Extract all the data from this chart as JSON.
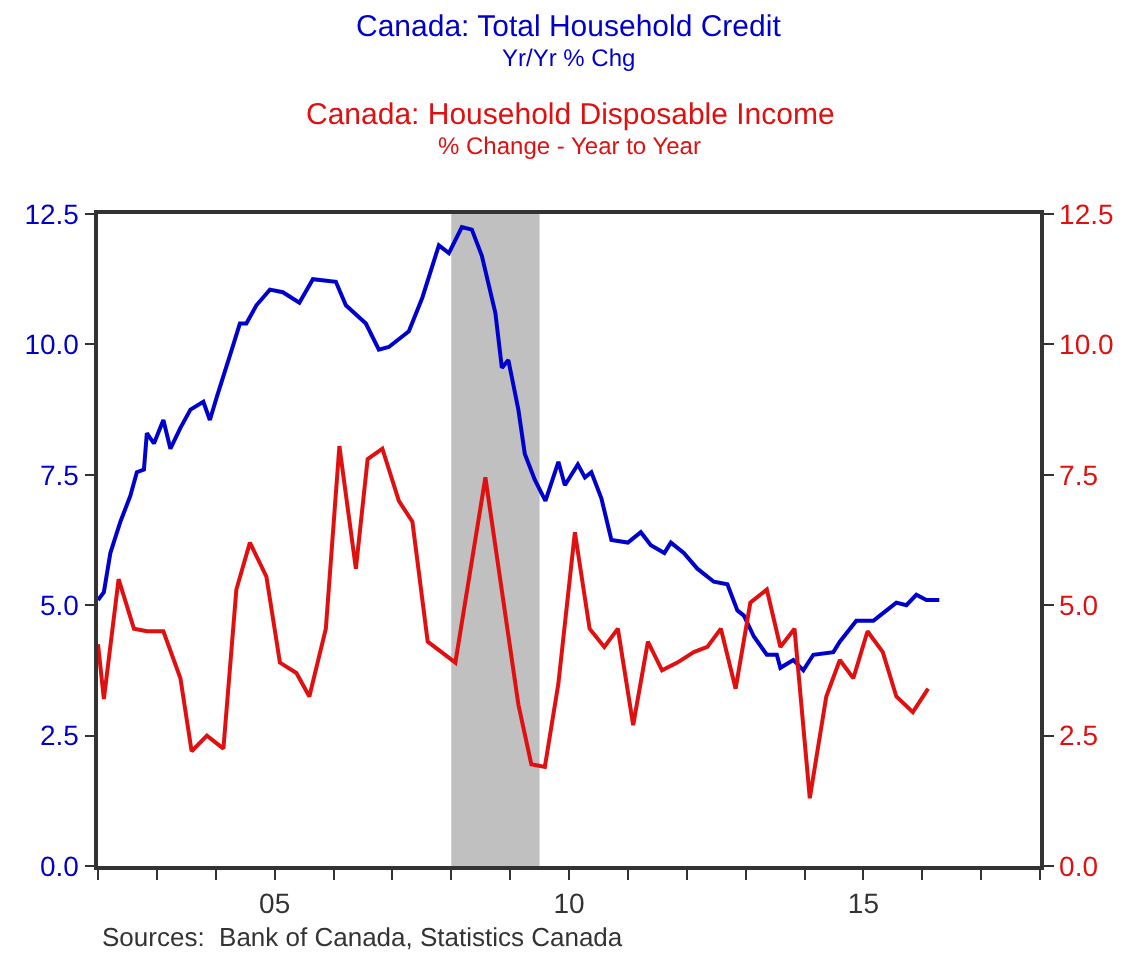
{
  "chart_data": {
    "type": "line",
    "annotations": [
      "Yr/Yr % Chg",
      "% Change - Year to Year",
      "Sources:  Bank of Canada, Statistics Canada"
    ],
    "xlim": [
      2,
      18
    ],
    "xticks": [
      {
        "value": 2,
        "label": null
      },
      {
        "value": 3,
        "label": null
      },
      {
        "value": 4,
        "label": null
      },
      {
        "value": 5,
        "label": "05"
      },
      {
        "value": 6,
        "label": null
      },
      {
        "value": 7,
        "label": null
      },
      {
        "value": 8,
        "label": null
      },
      {
        "value": 9,
        "label": null
      },
      {
        "value": 10,
        "label": "10"
      },
      {
        "value": 11,
        "label": null
      },
      {
        "value": 12,
        "label": null
      },
      {
        "value": 13,
        "label": null
      },
      {
        "value": 14,
        "label": null
      },
      {
        "value": 15,
        "label": "15"
      },
      {
        "value": 16,
        "label": null
      },
      {
        "value": 17,
        "label": null
      },
      {
        "value": 18,
        "label": null
      }
    ],
    "ylim": [
      0,
      12.5
    ],
    "yticks": [
      {
        "value": 0,
        "label": "0.0"
      },
      {
        "value": 2.5,
        "label": "2.5"
      },
      {
        "value": 5,
        "label": "5.0"
      },
      {
        "value": 7.5,
        "label": "7.5"
      },
      {
        "value": 10,
        "label": "10.0"
      },
      {
        "value": 12.5,
        "label": "12.5"
      }
    ],
    "y2lim": [
      0,
      12.5
    ],
    "y2ticks": [
      {
        "value": 0,
        "label": "0.0"
      },
      {
        "value": 2.5,
        "label": "2.5"
      },
      {
        "value": 5,
        "label": "5.0"
      },
      {
        "value": 7.5,
        "label": "7.5"
      },
      {
        "value": 10,
        "label": "10.0"
      },
      {
        "value": 12.5,
        "label": "12.5"
      }
    ],
    "bands": [
      {
        "axis": "x",
        "from": 8.0,
        "to": 9.5,
        "label": null,
        "color": "#c0c0c0"
      }
    ],
    "grid": false,
    "legend": false,
    "marker": "none",
    "line_style": "solid",
    "series": [
      {
        "name": "Canada: Total Household Credit",
        "color": "#0000cc",
        "axis": "y",
        "x": [
          2.0,
          2.1,
          2.21,
          2.38,
          2.55,
          2.66,
          2.78,
          2.83,
          2.95,
          3.11,
          3.23,
          3.4,
          3.57,
          3.79,
          3.9,
          4.02,
          4.3,
          4.41,
          4.52,
          4.69,
          4.92,
          5.14,
          5.42,
          5.65,
          6.04,
          6.21,
          6.55,
          6.77,
          6.94,
          7.28,
          7.51,
          7.79,
          7.96,
          8.18,
          8.35,
          8.52,
          8.75,
          8.86,
          8.97,
          9.14,
          9.25,
          9.42,
          9.6,
          9.82,
          9.93,
          10.15,
          10.27,
          10.38,
          10.55,
          10.72,
          11.0,
          11.22,
          11.39,
          11.62,
          11.73,
          11.95,
          12.18,
          12.46,
          12.69,
          12.86,
          12.97,
          13.14,
          13.36,
          13.53,
          13.59,
          13.81,
          13.98,
          14.15,
          14.49,
          14.6,
          14.88,
          15.17,
          15.28,
          15.56,
          15.73,
          15.9,
          16.07,
          16.29
        ],
        "values": [
          5.1,
          5.25,
          6.0,
          6.6,
          7.1,
          7.55,
          7.6,
          8.3,
          8.1,
          8.55,
          8.0,
          8.4,
          8.75,
          8.9,
          8.55,
          9.0,
          10.0,
          10.4,
          10.4,
          10.75,
          11.05,
          11.0,
          10.8,
          11.25,
          11.2,
          10.75,
          10.4,
          9.9,
          9.95,
          10.25,
          10.9,
          11.9,
          11.75,
          12.25,
          12.2,
          11.7,
          10.6,
          9.55,
          9.7,
          8.75,
          7.9,
          7.4,
          7.0,
          7.75,
          7.3,
          7.7,
          7.45,
          7.55,
          7.05,
          6.25,
          6.2,
          6.4,
          6.15,
          6.0,
          6.2,
          6.0,
          5.7,
          5.45,
          5.4,
          4.9,
          4.8,
          4.4,
          4.05,
          4.05,
          3.8,
          3.95,
          3.75,
          4.05,
          4.1,
          4.3,
          4.7,
          4.7,
          4.8,
          5.05,
          5.0,
          5.2,
          5.1,
          5.1
        ]
      },
      {
        "name": "Canada: Household Disposable Income",
        "color": "#e01010",
        "axis": "y2",
        "x": [
          2.0,
          2.1,
          2.35,
          2.61,
          2.83,
          3.11,
          3.4,
          3.59,
          3.85,
          4.13,
          4.35,
          4.58,
          4.86,
          5.09,
          5.37,
          5.59,
          5.87,
          6.1,
          6.38,
          6.58,
          6.83,
          7.11,
          7.34,
          7.6,
          8.07,
          8.58,
          9.14,
          9.36,
          9.59,
          9.82,
          10.1,
          10.35,
          10.6,
          10.83,
          11.09,
          11.34,
          11.58,
          11.84,
          12.12,
          12.35,
          12.58,
          12.83,
          13.08,
          13.36,
          13.59,
          13.83,
          14.09,
          14.37,
          14.6,
          14.83,
          15.07,
          15.33,
          15.56,
          15.84,
          16.1
        ],
        "values": [
          4.25,
          3.2,
          5.5,
          4.55,
          4.5,
          4.5,
          3.6,
          2.2,
          2.5,
          2.25,
          5.3,
          6.2,
          5.55,
          3.9,
          3.7,
          3.25,
          4.55,
          8.05,
          5.7,
          7.8,
          8.0,
          7.0,
          6.6,
          4.3,
          3.9,
          7.45,
          3.1,
          1.95,
          1.9,
          3.5,
          6.4,
          4.55,
          4.2,
          4.55,
          2.7,
          4.3,
          3.75,
          3.9,
          4.1,
          4.2,
          4.55,
          3.4,
          5.05,
          5.3,
          4.2,
          4.55,
          1.3,
          3.25,
          3.95,
          3.6,
          4.5,
          4.1,
          3.25,
          2.95,
          3.4
        ]
      }
    ]
  }
}
